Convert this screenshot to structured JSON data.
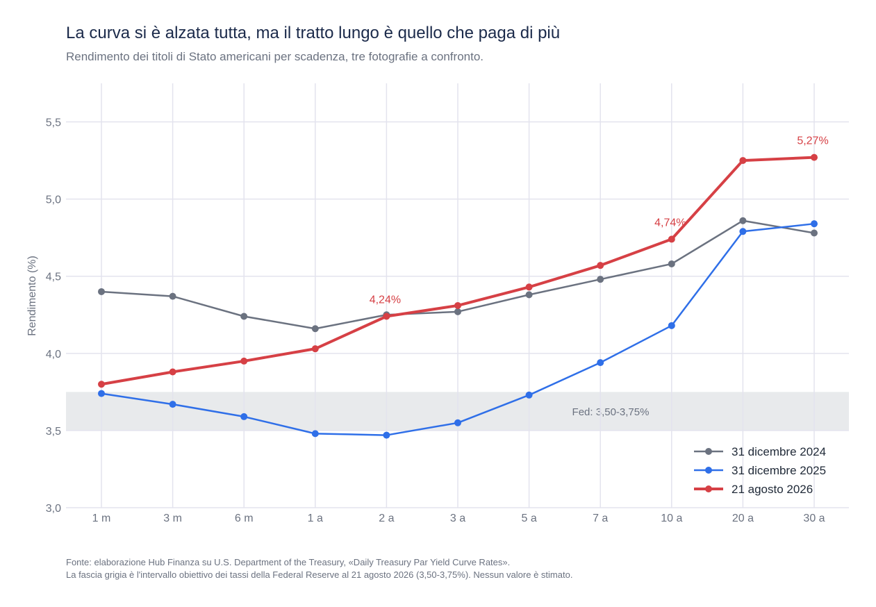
{
  "header": {
    "title": "La curva si è alzata tutta, ma il tratto lungo è quello che paga di più",
    "subtitle": "Rendimento dei titoli di Stato americani per scadenza, tre fotografie a confronto."
  },
  "footer": {
    "line1": "Fonte: elaborazione Hub Finanza su U.S. Department of the Treasury, «Daily Treasury Par Yield Curve Rates».",
    "line2": "La fascia grigia è l'intervallo obiettivo dei tassi della Federal Reserve al 21 agosto 2026 (3,50-3,75%). Nessun valore è stimato."
  },
  "colors": {
    "grid": "#e3e3ee",
    "band": "#e8eaec",
    "series": [
      "#6b7280",
      "#2f6fe8",
      "#d64045"
    ]
  },
  "chart_data": {
    "type": "line",
    "ylabel": "Rendimento (%)",
    "xlabel": "",
    "categories": [
      "1 m",
      "3 m",
      "6 m",
      "1 a",
      "2 a",
      "3 a",
      "5 a",
      "7 a",
      "10 a",
      "20 a",
      "30 a"
    ],
    "ylim": [
      3.0,
      5.75
    ],
    "yticks": [
      3.0,
      3.5,
      4.0,
      4.5,
      5.0,
      5.5
    ],
    "ytick_labels": [
      "3,0",
      "3,5",
      "4,0",
      "4,5",
      "5,0",
      "5,5"
    ],
    "grid": true,
    "legend_position": "bottom-right",
    "band": {
      "from": 3.5,
      "to": 3.75,
      "label": "Fed: 3,50-3,75%"
    },
    "series": [
      {
        "name": "31 dicembre 2024",
        "color": "#6b7280",
        "width": 2.5,
        "values": [
          4.4,
          4.37,
          4.24,
          4.16,
          4.25,
          4.27,
          4.38,
          4.48,
          4.58,
          4.86,
          4.78
        ]
      },
      {
        "name": "31 dicembre 2025",
        "color": "#2f6fe8",
        "width": 2.5,
        "values": [
          3.74,
          3.67,
          3.59,
          3.48,
          3.47,
          3.55,
          3.73,
          3.94,
          4.18,
          4.79,
          4.84
        ]
      },
      {
        "name": "21 agosto 2026",
        "color": "#d64045",
        "width": 4,
        "values": [
          3.8,
          3.88,
          3.95,
          4.03,
          4.24,
          4.31,
          4.43,
          4.57,
          4.74,
          5.25,
          5.27
        ]
      }
    ],
    "annotations": [
      {
        "series": 2,
        "index": 4,
        "text": "4,24%"
      },
      {
        "series": 2,
        "index": 8,
        "text": "4,74%"
      },
      {
        "series": 2,
        "index": 10,
        "text": "5,27%"
      }
    ]
  }
}
